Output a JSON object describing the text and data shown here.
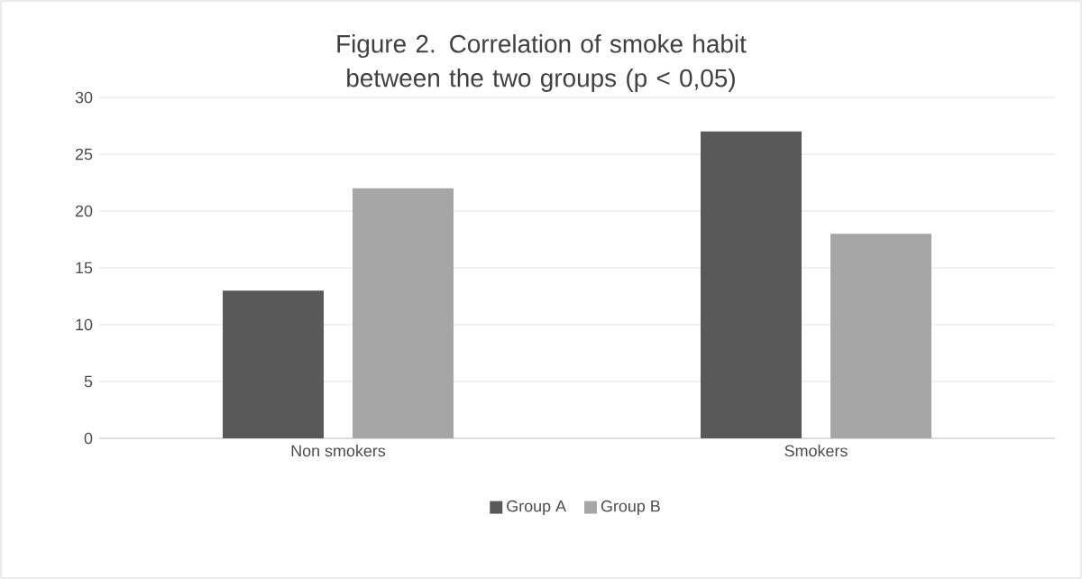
{
  "chart_data": {
    "type": "bar",
    "title": "Figure 2. Correlation of smoke habit between the two groups (p < 0,05)",
    "categories": [
      "Non smokers",
      "Smokers"
    ],
    "series": [
      {
        "name": "Group A",
        "color": "#595959",
        "values": [
          13,
          27
        ]
      },
      {
        "name": "Group B",
        "color": "#a6a6a6",
        "values": [
          22,
          18
        ]
      }
    ],
    "ylim": [
      0,
      30
    ],
    "yticks": [
      0,
      5,
      10,
      15,
      20,
      25,
      30
    ],
    "grid": "y",
    "legend": "bottom"
  }
}
